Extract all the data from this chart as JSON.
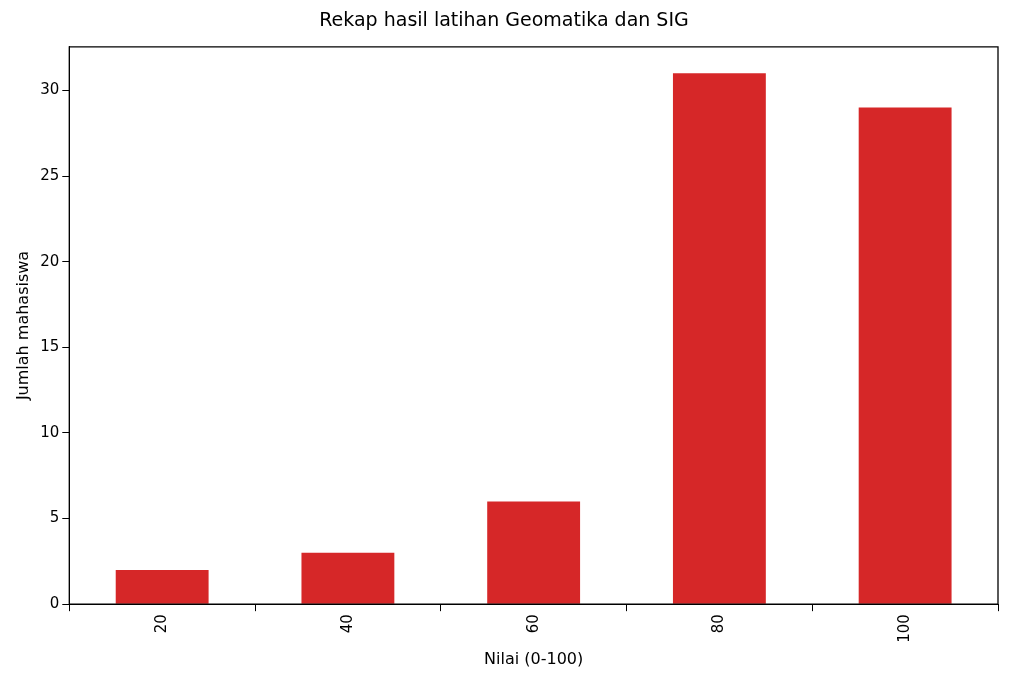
{
  "chart_data": {
    "type": "bar",
    "title": "Rekap hasil latihan Geomatika dan SIG",
    "xlabel": "Nilai (0-100)",
    "ylabel": "Jumlah mahasiswa",
    "categories": [
      "20",
      "40",
      "60",
      "80",
      "100"
    ],
    "values": [
      2,
      3,
      6,
      31,
      29
    ],
    "color": "#d62728",
    "ylim": [
      0,
      32.55
    ],
    "yticks": [
      0,
      5,
      10,
      15,
      20,
      25,
      30
    ],
    "grid": false,
    "legend": false
  }
}
